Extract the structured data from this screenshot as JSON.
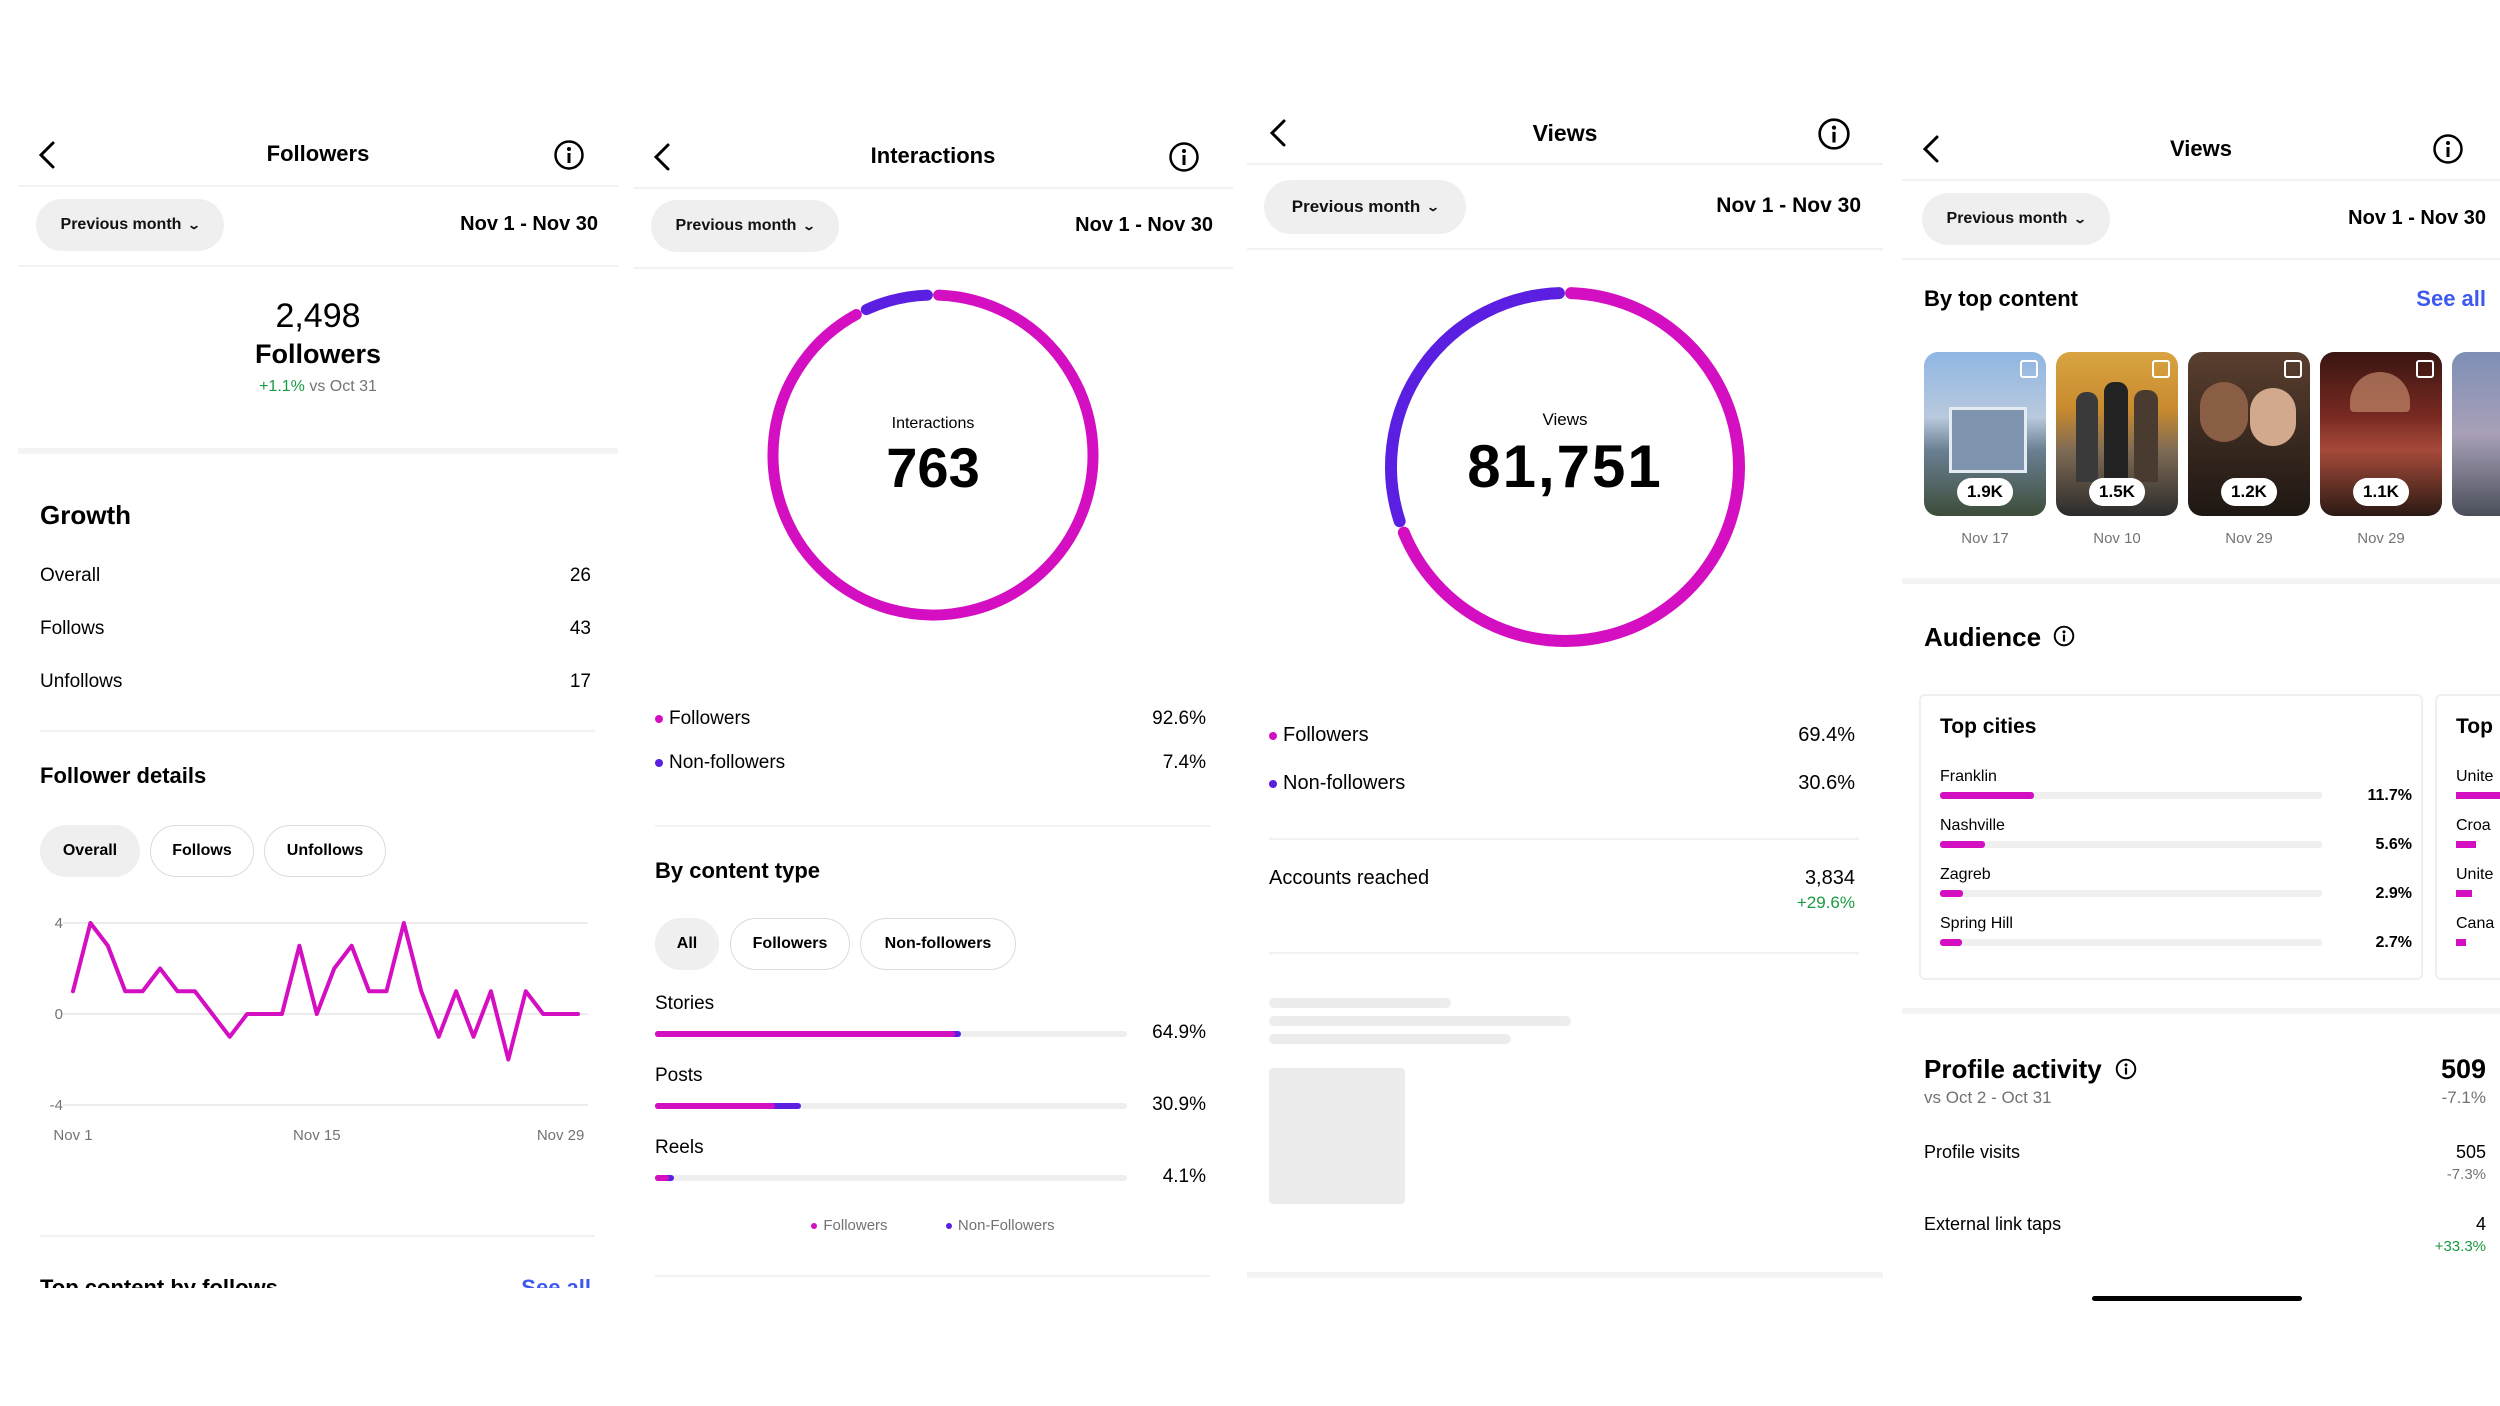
{
  "colors": {
    "magenta": "#d40fc2",
    "purple": "#5a1fe0",
    "green": "#1a9b43",
    "link": "#3e59f0"
  },
  "common": {
    "period": "Previous month",
    "range": "Nov 1 - Nov 30"
  },
  "followers": {
    "title": "Followers",
    "count": "2,498",
    "count_label": "Followers",
    "change": "+1.1%",
    "change_ref": "vs Oct 31",
    "growth": {
      "title": "Growth",
      "rows": [
        {
          "label": "Overall",
          "value": "26"
        },
        {
          "label": "Follows",
          "value": "43"
        },
        {
          "label": "Unfollows",
          "value": "17"
        }
      ]
    },
    "details": {
      "title": "Follower details",
      "chips": [
        "Overall",
        "Follows",
        "Unfollows"
      ]
    },
    "chart_data": {
      "type": "line",
      "x": [
        "Nov 1",
        "Nov 2",
        "Nov 3",
        "Nov 4",
        "Nov 5",
        "Nov 6",
        "Nov 7",
        "Nov 8",
        "Nov 9",
        "Nov 10",
        "Nov 11",
        "Nov 12",
        "Nov 13",
        "Nov 14",
        "Nov 15",
        "Nov 16",
        "Nov 17",
        "Nov 18",
        "Nov 19",
        "Nov 20",
        "Nov 21",
        "Nov 22",
        "Nov 23",
        "Nov 24",
        "Nov 25",
        "Nov 26",
        "Nov 27",
        "Nov 28",
        "Nov 29",
        "Nov 30"
      ],
      "values": [
        1,
        4,
        3,
        1,
        1,
        2,
        1,
        1,
        0,
        -1,
        0,
        0,
        0,
        3,
        0,
        2,
        3,
        1,
        1,
        4,
        1,
        -1,
        1,
        -1,
        1,
        -2,
        1,
        0,
        0,
        0
      ],
      "xticks": [
        "Nov 1",
        "Nov 15",
        "Nov 29"
      ],
      "yticks": [
        "4",
        "0",
        "-4"
      ],
      "ylim": [
        -4,
        4
      ],
      "grid": true
    },
    "next_section": "Top content by follows",
    "next_link": "See all"
  },
  "interactions": {
    "title": "Interactions",
    "donut_label": "Interactions",
    "donut_value": "763",
    "donut_data": {
      "type": "pie",
      "labels": [
        "Followers",
        "Non-followers"
      ],
      "values": [
        92.6,
        7.4
      ]
    },
    "rows": [
      {
        "label": "Followers",
        "value": "92.6%"
      },
      {
        "label": "Non-followers",
        "value": "7.4%"
      }
    ],
    "by_type": {
      "title": "By content type",
      "chips": [
        "All",
        "Followers",
        "Non-followers"
      ],
      "items": [
        {
          "label": "Stories",
          "value": "64.9%",
          "total": 64.9,
          "followers": 63.5
        },
        {
          "label": "Posts",
          "value": "30.9%",
          "total": 30.9,
          "followers": 25.5
        },
        {
          "label": "Reels",
          "value": "4.1%",
          "total": 4.1,
          "followers": 3.0
        }
      ],
      "legend": [
        "Followers",
        "Non-Followers"
      ]
    }
  },
  "views": {
    "title": "Views",
    "donut_label": "Views",
    "donut_value": "81,751",
    "donut_data": {
      "type": "pie",
      "labels": [
        "Followers",
        "Non-followers"
      ],
      "values": [
        69.4,
        30.6
      ]
    },
    "rows": [
      {
        "label": "Followers",
        "value": "69.4%"
      },
      {
        "label": "Non-followers",
        "value": "30.6%"
      }
    ],
    "reached_label": "Accounts reached",
    "reached_value": "3,834",
    "reached_change": "+29.6%"
  },
  "views2": {
    "title": "Views",
    "top_content_title": "By top content",
    "see_all": "See all",
    "thumbs": [
      {
        "value": "1.9K",
        "date": "Nov 17"
      },
      {
        "value": "1.5K",
        "date": "Nov 10"
      },
      {
        "value": "1.2K",
        "date": "Nov 29"
      },
      {
        "value": "1.1K",
        "date": "Nov 29"
      }
    ],
    "audience_title": "Audience",
    "cities": {
      "title": "Top cities",
      "items": [
        {
          "label": "Franklin",
          "value": "11.7%",
          "pct": 11.7
        },
        {
          "label": "Nashville",
          "value": "5.6%",
          "pct": 5.6
        },
        {
          "label": "Zagreb",
          "value": "2.9%",
          "pct": 2.9
        },
        {
          "label": "Spring Hill",
          "value": "2.7%",
          "pct": 2.7
        }
      ]
    },
    "countries_partial": {
      "title": "Top",
      "items": [
        "Unite",
        "Croa",
        "Unite",
        "Cana"
      ]
    },
    "profile": {
      "title": "Profile activity",
      "value": "509",
      "ref": "vs Oct 2 - Oct 31",
      "change": "-7.1%",
      "rows": [
        {
          "label": "Profile visits",
          "value": "505",
          "change": "-7.3%"
        },
        {
          "label": "External link taps",
          "value": "4",
          "change": "+33.3%"
        }
      ]
    }
  }
}
